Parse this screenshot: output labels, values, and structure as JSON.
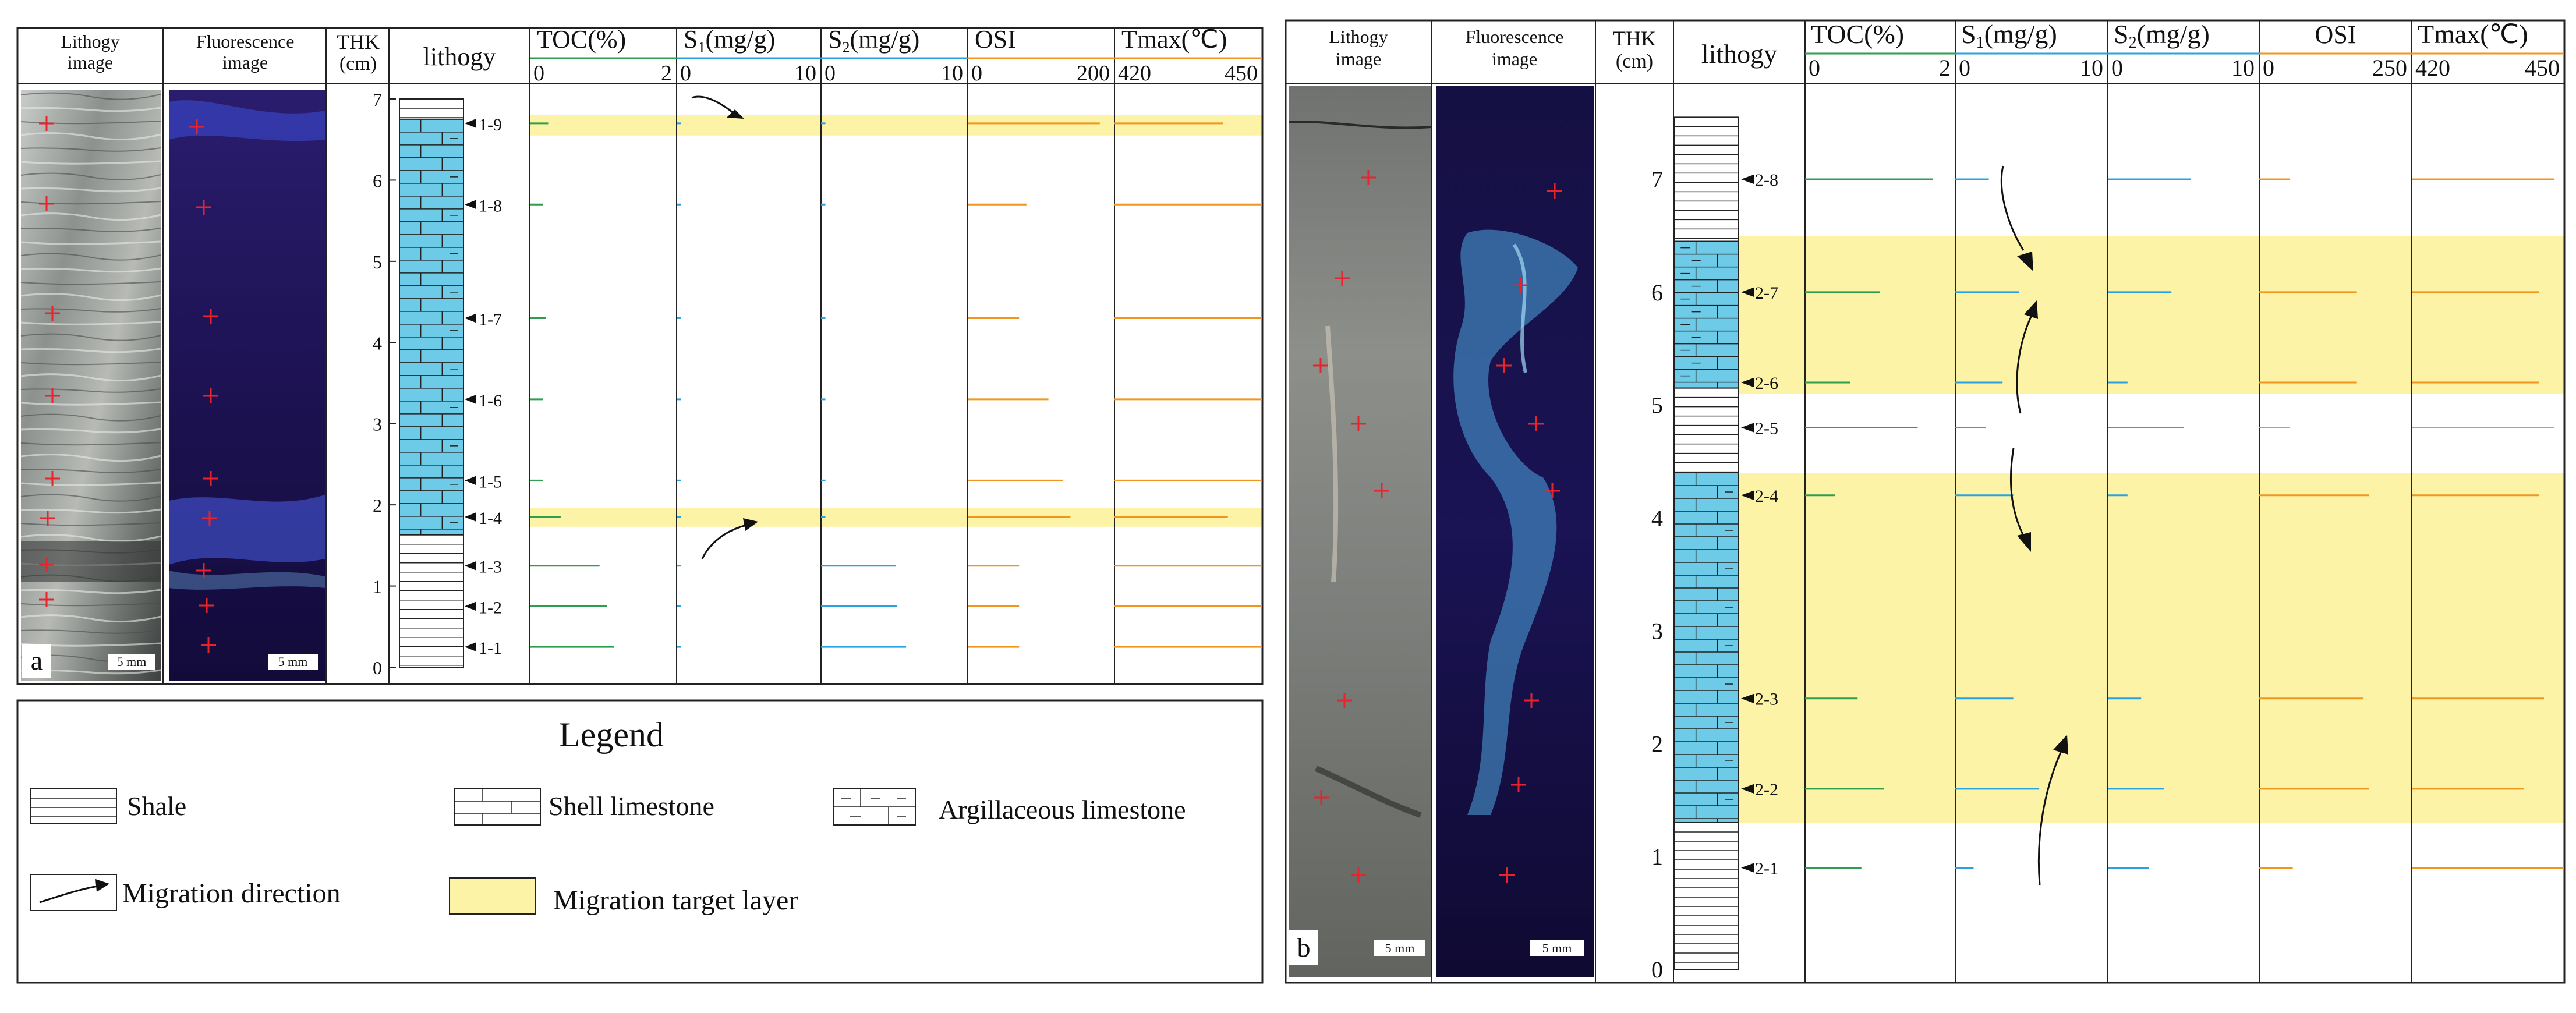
{
  "figure_a": {
    "panel_letter": "a",
    "headers": {
      "lithology_image": [
        "Lithogy",
        "image"
      ],
      "fluorescence_image": [
        "Fluorescence",
        "image"
      ],
      "thk": [
        "THK",
        "(cm)"
      ],
      "lithology": "lithogy"
    },
    "scale_bar": "5 mm",
    "depth_ticks": [
      "0",
      "1",
      "2",
      "3",
      "4",
      "5",
      "6",
      "7"
    ],
    "samples": [
      {
        "id": "1-9",
        "depth": 6.7,
        "toc": 0.25,
        "s1": 0.12,
        "s2": 0.15,
        "osi": 180,
        "tmax": 442
      },
      {
        "id": "1-8",
        "depth": 5.7,
        "toc": 0.18,
        "s1": 0.06,
        "s2": 0.15,
        "osi": 80,
        "tmax": 450
      },
      {
        "id": "1-7",
        "depth": 4.3,
        "toc": 0.22,
        "s1": 0.08,
        "s2": 0.3,
        "osi": 70,
        "tmax": 450
      },
      {
        "id": "1-6",
        "depth": 3.3,
        "toc": 0.18,
        "s1": 0.08,
        "s2": 0.15,
        "osi": 110,
        "tmax": 450
      },
      {
        "id": "1-5",
        "depth": 2.3,
        "toc": 0.18,
        "s1": 0.08,
        "s2": 0.15,
        "osi": 130,
        "tmax": 450
      },
      {
        "id": "1-4",
        "depth": 1.85,
        "toc": 0.42,
        "s1": 0.2,
        "s2": 0.3,
        "osi": 140,
        "tmax": 443
      },
      {
        "id": "1-3",
        "depth": 1.25,
        "toc": 0.95,
        "s1": 0.3,
        "s2": 5.1,
        "osi": 70,
        "tmax": 450
      },
      {
        "id": "1-2",
        "depth": 0.75,
        "toc": 1.05,
        "s1": 0.3,
        "s2": 5.2,
        "osi": 70,
        "tmax": 450
      },
      {
        "id": "1-1",
        "depth": 0.25,
        "toc": 1.15,
        "s1": 0.3,
        "s2": 5.8,
        "osi": 70,
        "tmax": 450
      }
    ],
    "highlight_bands": [
      [
        6.55,
        6.8
      ],
      [
        1.73,
        1.96
      ]
    ],
    "lithology_layers": [
      {
        "type": "shale",
        "from": 6.75,
        "to": 7.0
      },
      {
        "type": "shell",
        "from": 1.63,
        "to": 6.75
      },
      {
        "type": "shale",
        "from": 0,
        "to": 1.63
      }
    ]
  },
  "figure_b": {
    "panel_letter": "b",
    "headers": {
      "lithology_image": [
        "Lithogy",
        "image"
      ],
      "fluorescence_image": [
        "Fluorescence",
        "image"
      ],
      "thk": [
        "THK",
        "(cm)"
      ],
      "lithology": "lithogy"
    },
    "scale_bar": "5 mm",
    "depth_ticks": [
      "0",
      "1",
      "2",
      "3",
      "4",
      "5",
      "6",
      "7"
    ],
    "samples": [
      {
        "id": "2-8",
        "depth": 7.0,
        "toc": 1.7,
        "s1": 2.2,
        "s2": 5.5,
        "osi": 50,
        "tmax": 448
      },
      {
        "id": "2-7",
        "depth": 6.0,
        "toc": 1.0,
        "s1": 4.2,
        "s2": 4.2,
        "osi": 160,
        "tmax": 445
      },
      {
        "id": "2-6",
        "depth": 5.2,
        "toc": 0.6,
        "s1": 3.1,
        "s2": 1.3,
        "osi": 160,
        "tmax": 445
      },
      {
        "id": "2-5",
        "depth": 4.8,
        "toc": 1.5,
        "s1": 2.0,
        "s2": 5.0,
        "osi": 50,
        "tmax": 448
      },
      {
        "id": "2-4",
        "depth": 4.2,
        "toc": 0.4,
        "s1": 3.8,
        "s2": 1.3,
        "osi": 180,
        "tmax": 445
      },
      {
        "id": "2-3",
        "depth": 2.4,
        "toc": 0.7,
        "s1": 3.8,
        "s2": 2.2,
        "osi": 170,
        "tmax": 446
      },
      {
        "id": "2-2",
        "depth": 1.6,
        "toc": 1.05,
        "s1": 5.5,
        "s2": 3.7,
        "osi": 180,
        "tmax": 442
      },
      {
        "id": "2-1",
        "depth": 0.9,
        "toc": 0.75,
        "s1": 1.2,
        "s2": 2.7,
        "osi": 55,
        "tmax": 450
      }
    ],
    "highlight_bands": [
      [
        5.1,
        6.5
      ],
      [
        1.3,
        4.4
      ]
    ],
    "lithology_layers": [
      {
        "type": "shale",
        "from": 6.45,
        "to": 7.55
      },
      {
        "type": "argillaceous",
        "from": 5.15,
        "to": 6.45
      },
      {
        "type": "shale",
        "from": 4.4,
        "to": 5.15
      },
      {
        "type": "shell",
        "from": 1.3,
        "to": 4.4
      },
      {
        "type": "shale",
        "from": 0,
        "to": 1.3
      }
    ]
  },
  "columns": {
    "toc": {
      "label": "TOC(%)",
      "min": "0",
      "max": "2",
      "min_val": 0,
      "max_val": 2,
      "color": "#2e9e4f"
    },
    "s1": {
      "label": "S",
      "sub": "1",
      "suffix": "(mg/g)",
      "min": "0",
      "max": "10",
      "min_val": 0,
      "max_val": 10,
      "color": "#29a3e0"
    },
    "s2": {
      "label": "S",
      "sub": "2",
      "suffix": "(mg/g)",
      "min": "0",
      "max": "10",
      "min_val": 0,
      "max_val": 10,
      "color": "#29a3e0"
    },
    "osi_a": {
      "label": "OSI",
      "min": "0",
      "max": "200",
      "min_val": 0,
      "max_val": 200,
      "color": "#f0961e"
    },
    "osi_b": {
      "label": "OSI",
      "min": "0",
      "max": "250",
      "min_val": 0,
      "max_val": 250,
      "color": "#f0961e"
    },
    "tmax": {
      "label": "Tmax(℃)",
      "min": "420",
      "max": "450",
      "min_val": 420,
      "max_val": 450,
      "color": "#f0961e"
    }
  },
  "legend": {
    "title": "Legend",
    "items": {
      "shale": "Shale",
      "shell": "Shell limestone",
      "argillaceous": "Argillaceous limestone",
      "migration_direction": "Migration  direction",
      "migration_target": "Migration target layer"
    }
  },
  "colors": {
    "limestone": "#6ecbe8",
    "highlight": "#fdf3a6",
    "marker": "#e8232b"
  }
}
